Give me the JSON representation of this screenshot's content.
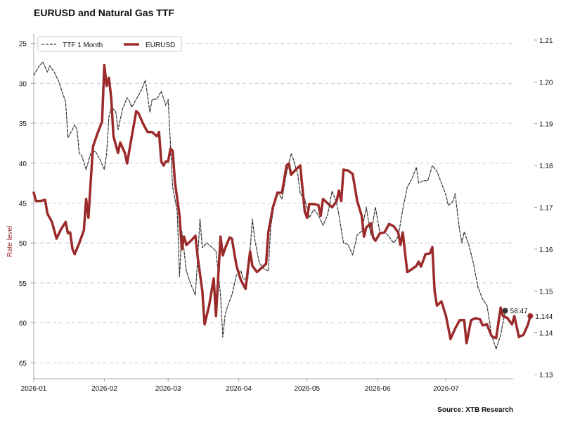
{
  "chart_data": {
    "type": "line",
    "title": "EURUSD and Natural Gas TTF",
    "source": "Source: XTB Research",
    "ylabel_left": "Rate level",
    "ylabel_right": "",
    "xlabel": "",
    "x_ticks": [
      "2026-01",
      "2026-02",
      "2026-03",
      "2026-04",
      "2026-05",
      "2026-06",
      "2026-07"
    ],
    "left_axis": {
      "min": 25,
      "max": 65,
      "inverted": true,
      "ticks": [
        "25",
        "30",
        "35",
        "40",
        "45",
        "50",
        "55",
        "60",
        "65"
      ],
      "range": [
        23.8,
        67.0
      ]
    },
    "right_axis": {
      "ticks": [
        "1.21",
        "1.20",
        "1.19",
        "1.18",
        "1.17",
        "1.16",
        "1.15",
        "1.14",
        "1.13"
      ],
      "range": [
        1.129,
        1.2115
      ]
    },
    "grid": "horizontal dashed",
    "legend": {
      "placement": "top-left",
      "entries": [
        "TTF 1 Month",
        "EURUSD"
      ]
    },
    "series": [
      {
        "name": "TTF 1 Month",
        "axis": "left",
        "color": "#333333",
        "style": "dashed",
        "last_label": "58.47",
        "points": [
          [
            "2026-01-01",
            29.0
          ],
          [
            "2026-01-03",
            28.0
          ],
          [
            "2026-01-05",
            27.3
          ],
          [
            "2026-01-07",
            28.6
          ],
          [
            "2026-01-08",
            27.8
          ],
          [
            "2026-01-10",
            28.6
          ],
          [
            "2026-01-12",
            29.8
          ],
          [
            "2026-01-14",
            31.5
          ],
          [
            "2026-01-15",
            32.3
          ],
          [
            "2026-01-16",
            36.8
          ],
          [
            "2026-01-18",
            35.8
          ],
          [
            "2026-01-19",
            35.2
          ],
          [
            "2026-01-20",
            35.8
          ],
          [
            "2026-01-21",
            38.8
          ],
          [
            "2026-01-22",
            39.0
          ],
          [
            "2026-01-24",
            40.8
          ],
          [
            "2026-01-26",
            38.8
          ],
          [
            "2026-01-28",
            38.5
          ],
          [
            "2026-01-30",
            39.5
          ],
          [
            "2026-02-01",
            40.8
          ],
          [
            "2026-02-02",
            38.8
          ],
          [
            "2026-02-03",
            34.2
          ],
          [
            "2026-02-04",
            33.0
          ],
          [
            "2026-02-06",
            33.5
          ],
          [
            "2026-02-07",
            35.8
          ],
          [
            "2026-02-09",
            33.2
          ],
          [
            "2026-02-11",
            31.8
          ],
          [
            "2026-02-12",
            32.2
          ],
          [
            "2026-02-13",
            33.0
          ],
          [
            "2026-02-15",
            32.0
          ],
          [
            "2026-02-17",
            31.0
          ],
          [
            "2026-02-19",
            29.6
          ],
          [
            "2026-02-21",
            33.6
          ],
          [
            "2026-02-22",
            32.0
          ],
          [
            "2026-02-24",
            32.0
          ],
          [
            "2026-02-26",
            31.0
          ],
          [
            "2026-02-28",
            32.8
          ],
          [
            "2026-03-01",
            32.0
          ],
          [
            "2026-03-03",
            43.0
          ],
          [
            "2026-03-05",
            46.0
          ],
          [
            "2026-03-06",
            54.2
          ],
          [
            "2026-03-07",
            48.5
          ],
          [
            "2026-03-09",
            53.5
          ],
          [
            "2026-03-11",
            55.2
          ],
          [
            "2026-03-13",
            56.5
          ],
          [
            "2026-03-15",
            47.0
          ],
          [
            "2026-03-16",
            50.6
          ],
          [
            "2026-03-18",
            50.0
          ],
          [
            "2026-03-20",
            50.5
          ],
          [
            "2026-03-22",
            51.0
          ],
          [
            "2026-03-24",
            56.5
          ],
          [
            "2026-03-25",
            61.8
          ],
          [
            "2026-03-26",
            59.0
          ],
          [
            "2026-03-27",
            58.0
          ],
          [
            "2026-03-29",
            56.5
          ],
          [
            "2026-03-31",
            54.0
          ],
          [
            "2026-04-02",
            53.5
          ],
          [
            "2026-04-03",
            54.5
          ],
          [
            "2026-04-05",
            54.5
          ],
          [
            "2026-04-07",
            47.0
          ],
          [
            "2026-04-08",
            49.5
          ],
          [
            "2026-04-10",
            52.5
          ],
          [
            "2026-04-12",
            53.2
          ],
          [
            "2026-04-14",
            53.5
          ],
          [
            "2026-04-15",
            48.0
          ],
          [
            "2026-04-17",
            44.5
          ],
          [
            "2026-04-18",
            43.5
          ],
          [
            "2026-04-20",
            44.5
          ],
          [
            "2026-04-22",
            41.2
          ],
          [
            "2026-04-24",
            38.8
          ],
          [
            "2026-04-25",
            39.5
          ],
          [
            "2026-04-27",
            41.5
          ],
          [
            "2026-04-28",
            43.8
          ],
          [
            "2026-04-30",
            44.5
          ],
          [
            "2026-05-02",
            46.8
          ],
          [
            "2026-05-04",
            45.8
          ],
          [
            "2026-05-06",
            46.5
          ],
          [
            "2026-05-08",
            47.8
          ],
          [
            "2026-05-10",
            46.5
          ],
          [
            "2026-05-11",
            45.0
          ],
          [
            "2026-05-12",
            43.5
          ],
          [
            "2026-05-14",
            45.0
          ],
          [
            "2026-05-15",
            46.5
          ],
          [
            "2026-05-17",
            50.0
          ],
          [
            "2026-05-19",
            50.2
          ],
          [
            "2026-05-21",
            51.5
          ],
          [
            "2026-05-23",
            49.0
          ],
          [
            "2026-05-25",
            48.5
          ],
          [
            "2026-05-27",
            45.5
          ],
          [
            "2026-05-29",
            49.0
          ],
          [
            "2026-05-31",
            45.5
          ],
          [
            "2026-06-02",
            48.8
          ],
          [
            "2026-06-04",
            48.6
          ],
          [
            "2026-06-06",
            49.2
          ],
          [
            "2026-06-08",
            50.0
          ],
          [
            "2026-06-10",
            49.2
          ],
          [
            "2026-06-12",
            45.8
          ],
          [
            "2026-06-14",
            43.0
          ],
          [
            "2026-06-16",
            42.0
          ],
          [
            "2026-06-18",
            40.5
          ],
          [
            "2026-06-19",
            42.5
          ],
          [
            "2026-06-21",
            42.2
          ],
          [
            "2026-06-23",
            42.2
          ],
          [
            "2026-06-25",
            40.3
          ],
          [
            "2026-06-27",
            41.0
          ],
          [
            "2026-06-29",
            42.5
          ],
          [
            "2026-07-01",
            44.0
          ],
          [
            "2026-07-02",
            45.3
          ],
          [
            "2026-07-04",
            44.8
          ],
          [
            "2026-07-05",
            43.8
          ],
          [
            "2026-07-07",
            48.5
          ],
          [
            "2026-07-08",
            50.0
          ],
          [
            "2026-07-09",
            48.6
          ],
          [
            "2026-07-11",
            50.2
          ],
          [
            "2026-07-13",
            52.5
          ],
          [
            "2026-07-15",
            55.5
          ],
          [
            "2026-07-17",
            57.0
          ],
          [
            "2026-07-19",
            57.8
          ],
          [
            "2026-07-21",
            61.5
          ],
          [
            "2026-07-23",
            63.3
          ],
          [
            "2026-07-25",
            61.5
          ],
          [
            "2026-07-27",
            58.47
          ]
        ]
      },
      {
        "name": "EURUSD",
        "axis": "right",
        "color": "#9b2a2a",
        "style": "solid",
        "last_label": "1.144",
        "points": [
          [
            "2026-01-01",
            1.1735
          ],
          [
            "2026-01-02",
            1.1715
          ],
          [
            "2026-01-04",
            1.1715
          ],
          [
            "2026-01-06",
            1.1718
          ],
          [
            "2026-01-07",
            1.1685
          ],
          [
            "2026-01-09",
            1.1665
          ],
          [
            "2026-01-11",
            1.1625
          ],
          [
            "2026-01-13",
            1.1648
          ],
          [
            "2026-01-15",
            1.1665
          ],
          [
            "2026-01-16",
            1.1638
          ],
          [
            "2026-01-17",
            1.164
          ],
          [
            "2026-01-18",
            1.16
          ],
          [
            "2026-01-19",
            1.1588
          ],
          [
            "2026-01-21",
            1.1615
          ],
          [
            "2026-01-23",
            1.1645
          ],
          [
            "2026-01-24",
            1.172
          ],
          [
            "2026-01-25",
            1.1675
          ],
          [
            "2026-01-27",
            1.1845
          ],
          [
            "2026-01-29",
            1.1877
          ],
          [
            "2026-01-31",
            1.1905
          ],
          [
            "2026-02-01",
            1.204
          ],
          [
            "2026-02-02",
            1.199
          ],
          [
            "2026-02-03",
            1.201
          ],
          [
            "2026-02-04",
            1.1962
          ],
          [
            "2026-02-05",
            1.187
          ],
          [
            "2026-02-07",
            1.183
          ],
          [
            "2026-02-08",
            1.1855
          ],
          [
            "2026-02-10",
            1.183
          ],
          [
            "2026-02-11",
            1.1805
          ],
          [
            "2026-02-13",
            1.1868
          ],
          [
            "2026-02-15",
            1.193
          ],
          [
            "2026-02-16",
            1.1925
          ],
          [
            "2026-02-18",
            1.19
          ],
          [
            "2026-02-20",
            1.188
          ],
          [
            "2026-02-22",
            1.188
          ],
          [
            "2026-02-24",
            1.187
          ],
          [
            "2026-02-25",
            1.188
          ],
          [
            "2026-02-26",
            1.181
          ],
          [
            "2026-02-27",
            1.18
          ],
          [
            "2026-02-28",
            1.181
          ],
          [
            "2026-03-01",
            1.181
          ],
          [
            "2026-03-02",
            1.184
          ],
          [
            "2026-03-03",
            1.1835
          ],
          [
            "2026-03-04",
            1.176
          ],
          [
            "2026-03-06",
            1.168
          ],
          [
            "2026-03-07",
            1.16
          ],
          [
            "2026-03-08",
            1.163
          ],
          [
            "2026-03-09",
            1.161
          ],
          [
            "2026-03-11",
            1.162
          ],
          [
            "2026-03-13",
            1.1632
          ],
          [
            "2026-03-14",
            1.158
          ],
          [
            "2026-03-16",
            1.15
          ],
          [
            "2026-03-17",
            1.142
          ],
          [
            "2026-03-19",
            1.1465
          ],
          [
            "2026-03-21",
            1.153
          ],
          [
            "2026-03-22",
            1.144
          ],
          [
            "2026-03-24",
            1.163
          ],
          [
            "2026-03-25",
            1.1585
          ],
          [
            "2026-03-26",
            1.1602
          ],
          [
            "2026-03-28",
            1.1628
          ],
          [
            "2026-03-29",
            1.1625
          ],
          [
            "2026-03-31",
            1.156
          ],
          [
            "2026-04-02",
            1.1525
          ],
          [
            "2026-04-04",
            1.1505
          ],
          [
            "2026-04-06",
            1.1595
          ],
          [
            "2026-04-07",
            1.156
          ],
          [
            "2026-04-09",
            1.1545
          ],
          [
            "2026-04-11",
            1.1555
          ],
          [
            "2026-04-13",
            1.1565
          ],
          [
            "2026-04-14",
            1.164
          ],
          [
            "2026-04-16",
            1.17
          ],
          [
            "2026-04-18",
            1.1735
          ],
          [
            "2026-04-20",
            1.1735
          ],
          [
            "2026-04-22",
            1.18
          ],
          [
            "2026-04-23",
            1.1805
          ],
          [
            "2026-04-24",
            1.1778
          ],
          [
            "2026-04-26",
            1.179
          ],
          [
            "2026-04-28",
            1.18
          ],
          [
            "2026-04-30",
            1.169
          ],
          [
            "2026-05-01",
            1.1675
          ],
          [
            "2026-05-02",
            1.1708
          ],
          [
            "2026-05-04",
            1.1708
          ],
          [
            "2026-05-06",
            1.1705
          ],
          [
            "2026-05-07",
            1.168
          ],
          [
            "2026-05-08",
            1.172
          ],
          [
            "2026-05-10",
            1.171
          ],
          [
            "2026-05-12",
            1.17
          ],
          [
            "2026-05-14",
            1.1715
          ],
          [
            "2026-05-15",
            1.174
          ],
          [
            "2026-05-16",
            1.1715
          ],
          [
            "2026-05-17",
            1.179
          ],
          [
            "2026-05-19",
            1.1788
          ],
          [
            "2026-05-21",
            1.178
          ],
          [
            "2026-05-23",
            1.1715
          ],
          [
            "2026-05-25",
            1.168
          ],
          [
            "2026-05-26",
            1.163
          ],
          [
            "2026-05-27",
            1.1652
          ],
          [
            "2026-05-29",
            1.1662
          ],
          [
            "2026-05-30",
            1.1628
          ],
          [
            "2026-05-31",
            1.162
          ],
          [
            "2026-06-02",
            1.1638
          ],
          [
            "2026-06-04",
            1.164
          ],
          [
            "2026-06-06",
            1.166
          ],
          [
            "2026-06-08",
            1.1655
          ],
          [
            "2026-06-10",
            1.164
          ],
          [
            "2026-06-11",
            1.161
          ],
          [
            "2026-06-12",
            1.164
          ],
          [
            "2026-06-14",
            1.1545
          ],
          [
            "2026-06-16",
            1.1552
          ],
          [
            "2026-06-18",
            1.156
          ],
          [
            "2026-06-19",
            1.157
          ],
          [
            "2026-06-20",
            1.1558
          ],
          [
            "2026-06-22",
            1.1588
          ],
          [
            "2026-06-24",
            1.159
          ],
          [
            "2026-06-25",
            1.1605
          ],
          [
            "2026-06-26",
            1.15
          ],
          [
            "2026-06-27",
            1.1465
          ],
          [
            "2026-06-29",
            1.1475
          ],
          [
            "2026-07-01",
            1.144
          ],
          [
            "2026-07-03",
            1.1385
          ],
          [
            "2026-07-05",
            1.141
          ],
          [
            "2026-07-07",
            1.143
          ],
          [
            "2026-07-09",
            1.143
          ],
          [
            "2026-07-10",
            1.1375
          ],
          [
            "2026-07-12",
            1.143
          ],
          [
            "2026-07-14",
            1.1435
          ],
          [
            "2026-07-16",
            1.1432
          ],
          [
            "2026-07-17",
            1.1418
          ],
          [
            "2026-07-19",
            1.142
          ],
          [
            "2026-07-21",
            1.1392
          ],
          [
            "2026-07-23",
            1.1387
          ],
          [
            "2026-07-25",
            1.146
          ],
          [
            "2026-07-26",
            1.144
          ],
          [
            "2026-07-28",
            1.1435
          ],
          [
            "2026-07-30",
            1.142
          ],
          [
            "2026-07-31",
            1.144
          ],
          [
            "2026-08-01",
            1.1415
          ],
          [
            "2026-08-02",
            1.139
          ],
          [
            "2026-08-04",
            1.1395
          ],
          [
            "2026-08-06",
            1.142
          ],
          [
            "2026-08-07",
            1.144
          ]
        ]
      }
    ]
  }
}
